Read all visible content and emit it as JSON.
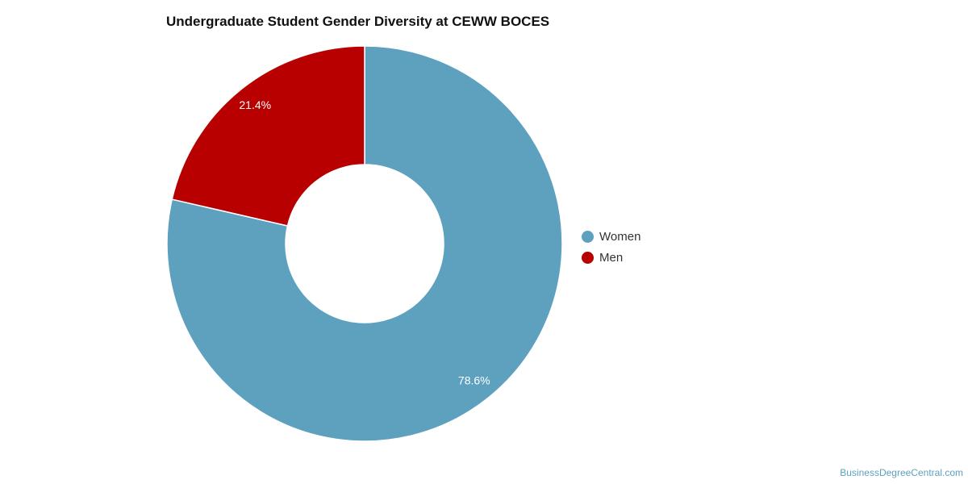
{
  "chart_data": {
    "type": "pie",
    "style": "donut",
    "title": "Undergraduate Student Gender Diversity at CEWW BOCES",
    "series": [
      {
        "name": "Women",
        "value": 78.6,
        "label": "78.6%",
        "color": "#5da1be"
      },
      {
        "name": "Men",
        "value": 21.4,
        "label": "21.4%",
        "color": "#b90000"
      }
    ],
    "legend": "right"
  },
  "source_credit": "BusinessDegreeCentral.com"
}
